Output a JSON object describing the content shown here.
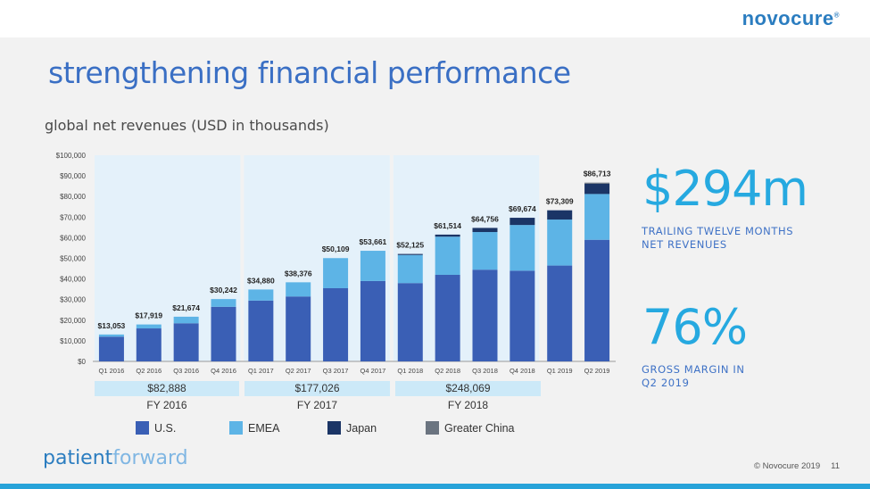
{
  "brand": {
    "logo": "novocure",
    "logo_mark": "®",
    "footer_left": "patient",
    "footer_right": "forward"
  },
  "title": "strengthening financial performance",
  "subtitle": "global net revenues (USD in thousands)",
  "metrics": [
    {
      "value": "$294m",
      "caption_line1": "TRAILING TWELVE MONTHS",
      "caption_line2": "NET REVENUES"
    },
    {
      "value": "76%",
      "caption_line1": "GROSS MARGIN IN",
      "caption_line2": "Q2 2019"
    }
  ],
  "fiscal_years": [
    {
      "total": "$82,888",
      "label": "FY 2016"
    },
    {
      "total": "$177,026",
      "label": "FY 2017"
    },
    {
      "total": "$248,069",
      "label": "FY 2018"
    }
  ],
  "legend": [
    {
      "label": "U.S.",
      "color": "#3a5fb5"
    },
    {
      "label": "EMEA",
      "color": "#5db4e6"
    },
    {
      "label": "Japan",
      "color": "#1b3566"
    },
    {
      "label": "Greater China",
      "color": "#6b7480"
    }
  ],
  "footer": {
    "copyright": "© Novocure 2019",
    "page": "11"
  },
  "chart_data": {
    "type": "bar",
    "stacked": true,
    "categories": [
      "Q1 2016",
      "Q2 2016",
      "Q3 2016",
      "Q4 2016",
      "Q1 2017",
      "Q2 2017",
      "Q3 2017",
      "Q4 2017",
      "Q1 2018",
      "Q2 2018",
      "Q3 2018",
      "Q4 2018",
      "Q1 2019",
      "Q2 2019"
    ],
    "series": [
      {
        "name": "U.S.",
        "color": "#3a5fb5",
        "values": [
          12000,
          16000,
          18500,
          26500,
          29500,
          31500,
          35500,
          39000,
          38000,
          42000,
          44500,
          44000,
          46500,
          59000
        ]
      },
      {
        "name": "EMEA",
        "color": "#5db4e6",
        "values": [
          1053,
          1919,
          3174,
          3742,
          5380,
          6876,
          14609,
          14661,
          13625,
          18514,
          18256,
          22174,
          22309,
          22213
        ]
      },
      {
        "name": "Japan",
        "color": "#1b3566",
        "values": [
          0,
          0,
          0,
          0,
          0,
          0,
          0,
          0,
          500,
          1000,
          2000,
          3500,
          4500,
          5000
        ]
      },
      {
        "name": "Greater China",
        "color": "#6b7480",
        "values": [
          0,
          0,
          0,
          0,
          0,
          0,
          0,
          0,
          0,
          0,
          0,
          0,
          0,
          500
        ]
      }
    ],
    "totals": [
      "$13,053",
      "$17,919",
      "$21,674",
      "$30,242",
      "$34,880",
      "$38,376",
      "$50,109",
      "$53,661",
      "$52,125",
      "$61,514",
      "$64,756",
      "$69,674",
      "$73,309",
      "$86,713"
    ],
    "total_values": [
      13053,
      17919,
      21674,
      30242,
      34880,
      38376,
      50109,
      53661,
      52125,
      61514,
      64756,
      69674,
      73309,
      86713
    ],
    "y_ticks": [
      "$0",
      "$10,000",
      "$20,000",
      "$30,000",
      "$40,000",
      "$50,000",
      "$60,000",
      "$70,000",
      "$80,000",
      "$90,000",
      "$100,000"
    ],
    "ylim": [
      0,
      100000
    ],
    "grid": false,
    "legend_position": "bottom"
  }
}
